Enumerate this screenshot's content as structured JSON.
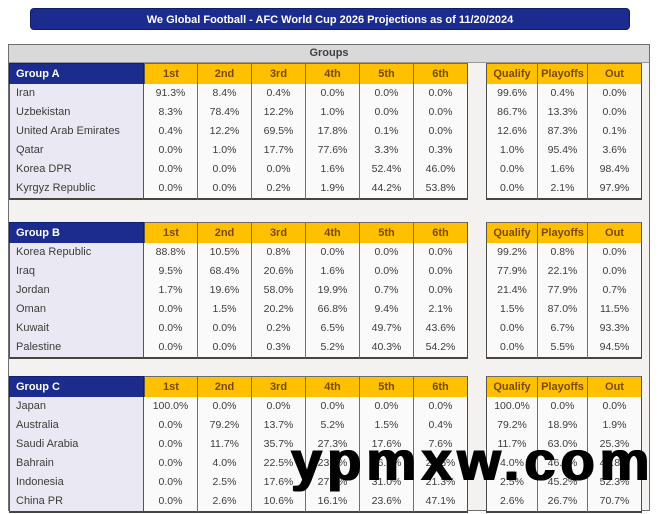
{
  "watermark": "ypmxw.com",
  "colors": {
    "navy": "#1b2c8e",
    "gold": "#ffc000",
    "gold_text": "#7a4906",
    "team_cell_bg": "#eae8f2",
    "band_bg": "#d9d9d9"
  },
  "chart_data": {
    "type": "table",
    "title": "We Global Football - AFC World Cup 2026 Projections as of 11/20/2024",
    "groups_label": "Groups",
    "position_headers": [
      "1st",
      "2nd",
      "3rd",
      "4th",
      "5th",
      "6th"
    ],
    "outcome_headers": [
      "Qualify",
      "Playoffs",
      "Out"
    ],
    "groups": [
      {
        "name": "Group A",
        "teams": [
          {
            "name": "Iran",
            "positions": [
              "91.3%",
              "8.4%",
              "0.4%",
              "0.0%",
              "0.0%",
              "0.0%"
            ],
            "outcomes": [
              "99.6%",
              "0.4%",
              "0.0%"
            ]
          },
          {
            "name": "Uzbekistan",
            "positions": [
              "8.3%",
              "78.4%",
              "12.2%",
              "1.0%",
              "0.0%",
              "0.0%"
            ],
            "outcomes": [
              "86.7%",
              "13.3%",
              "0.0%"
            ]
          },
          {
            "name": "United Arab Emirates",
            "positions": [
              "0.4%",
              "12.2%",
              "69.5%",
              "17.8%",
              "0.1%",
              "0.0%"
            ],
            "outcomes": [
              "12.6%",
              "87.3%",
              "0.1%"
            ]
          },
          {
            "name": "Qatar",
            "positions": [
              "0.0%",
              "1.0%",
              "17.7%",
              "77.6%",
              "3.3%",
              "0.3%"
            ],
            "outcomes": [
              "1.0%",
              "95.4%",
              "3.6%"
            ]
          },
          {
            "name": "Korea DPR",
            "positions": [
              "0.0%",
              "0.0%",
              "0.0%",
              "1.6%",
              "52.4%",
              "46.0%"
            ],
            "outcomes": [
              "0.0%",
              "1.6%",
              "98.4%"
            ]
          },
          {
            "name": "Kyrgyz Republic",
            "positions": [
              "0.0%",
              "0.0%",
              "0.2%",
              "1.9%",
              "44.2%",
              "53.8%"
            ],
            "outcomes": [
              "0.0%",
              "2.1%",
              "97.9%"
            ]
          }
        ]
      },
      {
        "name": "Group B",
        "teams": [
          {
            "name": "Korea Republic",
            "positions": [
              "88.8%",
              "10.5%",
              "0.8%",
              "0.0%",
              "0.0%",
              "0.0%"
            ],
            "outcomes": [
              "99.2%",
              "0.8%",
              "0.0%"
            ]
          },
          {
            "name": "Iraq",
            "positions": [
              "9.5%",
              "68.4%",
              "20.6%",
              "1.6%",
              "0.0%",
              "0.0%"
            ],
            "outcomes": [
              "77.9%",
              "22.1%",
              "0.0%"
            ]
          },
          {
            "name": "Jordan",
            "positions": [
              "1.7%",
              "19.6%",
              "58.0%",
              "19.9%",
              "0.7%",
              "0.0%"
            ],
            "outcomes": [
              "21.4%",
              "77.9%",
              "0.7%"
            ]
          },
          {
            "name": "Oman",
            "positions": [
              "0.0%",
              "1.5%",
              "20.2%",
              "66.8%",
              "9.4%",
              "2.1%"
            ],
            "outcomes": [
              "1.5%",
              "87.0%",
              "11.5%"
            ]
          },
          {
            "name": "Kuwait",
            "positions": [
              "0.0%",
              "0.0%",
              "0.2%",
              "6.5%",
              "49.7%",
              "43.6%"
            ],
            "outcomes": [
              "0.0%",
              "6.7%",
              "93.3%"
            ]
          },
          {
            "name": "Palestine",
            "positions": [
              "0.0%",
              "0.0%",
              "0.3%",
              "5.2%",
              "40.3%",
              "54.2%"
            ],
            "outcomes": [
              "0.0%",
              "5.5%",
              "94.5%"
            ]
          }
        ]
      },
      {
        "name": "Group C",
        "teams": [
          {
            "name": "Japan",
            "positions": [
              "100.0%",
              "0.0%",
              "0.0%",
              "0.0%",
              "0.0%",
              "0.0%"
            ],
            "outcomes": [
              "100.0%",
              "0.0%",
              "0.0%"
            ]
          },
          {
            "name": "Australia",
            "positions": [
              "0.0%",
              "79.2%",
              "13.7%",
              "5.2%",
              "1.5%",
              "0.4%"
            ],
            "outcomes": [
              "79.2%",
              "18.9%",
              "1.9%"
            ]
          },
          {
            "name": "Saudi Arabia",
            "positions": [
              "0.0%",
              "11.7%",
              "35.7%",
              "27.3%",
              "17.6%",
              "7.6%"
            ],
            "outcomes": [
              "11.7%",
              "63.0%",
              "25.3%"
            ]
          },
          {
            "name": "Bahrain",
            "positions": [
              "0.0%",
              "4.0%",
              "22.5%",
              "23.7%",
              "26.2%",
              "23.6%"
            ],
            "outcomes": [
              "4.0%",
              "46.2%",
              "49.8%"
            ]
          },
          {
            "name": "Indonesia",
            "positions": [
              "0.0%",
              "2.5%",
              "17.6%",
              "27.6%",
              "31.0%",
              "21.3%"
            ],
            "outcomes": [
              "2.5%",
              "45.2%",
              "52.3%"
            ]
          },
          {
            "name": "China PR",
            "positions": [
              "0.0%",
              "2.6%",
              "10.6%",
              "16.1%",
              "23.6%",
              "47.1%"
            ],
            "outcomes": [
              "2.6%",
              "26.7%",
              "70.7%"
            ]
          }
        ]
      }
    ]
  }
}
